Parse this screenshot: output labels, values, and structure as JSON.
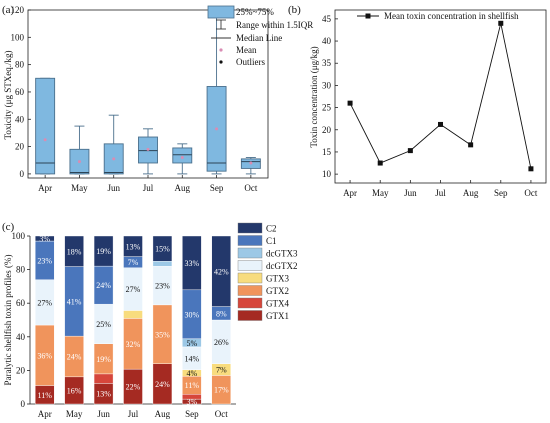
{
  "panels": {
    "a": {
      "label": "(a)",
      "chart_data": {
        "type": "box",
        "categories": [
          "Apr",
          "May",
          "Jun",
          "Jul",
          "Aug",
          "Sep",
          "Oct"
        ],
        "ylabel": "Toxicity (μg STXeq./kg)",
        "ylim": [
          -3,
          120
        ],
        "yticks": [
          0,
          20,
          40,
          60,
          80,
          100,
          120
        ],
        "boxes": [
          {
            "category": "Apr",
            "whisker_low": 0,
            "q1": 0,
            "median": 8,
            "q3": 70,
            "whisker_high": 70,
            "mean": 25
          },
          {
            "category": "May",
            "whisker_low": 0,
            "q1": 0,
            "median": 1,
            "q3": 18,
            "whisker_high": 35,
            "mean": 9
          },
          {
            "category": "Jun",
            "whisker_low": 0,
            "q1": 0,
            "median": 1,
            "q3": 22,
            "whisker_high": 43,
            "mean": 11
          },
          {
            "category": "Jul",
            "whisker_low": 0,
            "q1": 8,
            "median": 17,
            "q3": 27,
            "whisker_high": 33,
            "mean": 18
          },
          {
            "category": "Aug",
            "whisker_low": 0,
            "q1": 8,
            "median": 14,
            "q3": 19,
            "whisker_high": 22,
            "mean": 12
          },
          {
            "category": "Sep",
            "whisker_low": 0,
            "q1": 2,
            "median": 8,
            "q3": 64,
            "whisker_high": 115,
            "mean": 33
          },
          {
            "category": "Oct",
            "whisker_low": 0,
            "q1": 4,
            "median": 9,
            "q3": 11,
            "whisker_high": 12,
            "mean": 8
          }
        ],
        "legend": [
          "25%~75%",
          "Range within 1.5IQR",
          "Median Line",
          "Mean",
          "Outliers"
        ],
        "legend_position": "top-right",
        "colors": {
          "box_fill": "#7fb8e0",
          "box_stroke": "#4a6f8c",
          "mean": "#d98cb3"
        }
      }
    },
    "b": {
      "label": "(b)",
      "chart_data": {
        "type": "line",
        "categories": [
          "Apr",
          "May",
          "Jun",
          "Jul",
          "Aug",
          "Sep",
          "Oct"
        ],
        "series": [
          {
            "name": "Mean toxin concentration in shellfish",
            "values": [
              26,
              12.5,
              15.3,
              21.2,
              16.6,
              44,
              11.2
            ]
          }
        ],
        "ylabel": "Toxin concentration (μg/kg)",
        "ylim": [
          10,
          45
        ],
        "yticks": [
          10,
          15,
          20,
          25,
          30,
          35,
          40,
          45
        ],
        "legend_position": "top",
        "colors": {
          "line": "#111111"
        }
      }
    },
    "c": {
      "label": "(c)",
      "chart_data": {
        "type": "stacked-bar",
        "categories": [
          "Apr",
          "May",
          "Jun",
          "Jul",
          "Aug",
          "Sep",
          "Oct"
        ],
        "ylabel": "Paralytic shellfish toxin profiles (%)",
        "ylim": [
          0,
          100
        ],
        "yticks": [
          0,
          20,
          40,
          60,
          80,
          100
        ],
        "series": [
          {
            "name": "GTX1",
            "color": "#a52a22",
            "values": [
              11,
              16,
              13,
              22,
              24,
              3,
              0
            ],
            "labels": [
              "11%",
              "16%",
              "13%",
              "22%",
              "24%",
              "3%",
              ""
            ]
          },
          {
            "name": "GTX4",
            "color": "#d6463b",
            "values": [
              0,
              0,
              6,
              0,
              0,
              3,
              0
            ],
            "labels": [
              "",
              "",
              "",
              "",
              "",
              "",
              ""
            ]
          },
          {
            "name": "GTX2",
            "color": "#f0945c",
            "values": [
              36,
              24,
              19,
              32,
              35,
              11,
              17
            ],
            "labels": [
              "36%",
              "24%",
              "19%",
              "32%",
              "35%",
              "11%",
              "17%"
            ]
          },
          {
            "name": "GTX3",
            "color": "#f8dc7e",
            "values": [
              0,
              0,
              0,
              5,
              0,
              4,
              7
            ],
            "labels": [
              "",
              "",
              "",
              "",
              "",
              "4%",
              "7%"
            ]
          },
          {
            "name": "dcGTX2",
            "color": "#e9f3fb",
            "values": [
              27,
              0,
              25,
              27,
              23,
              14,
              26
            ],
            "labels": [
              "27%",
              "",
              "25%",
              "27%",
              "23%",
              "14%",
              "26%"
            ]
          },
          {
            "name": "dcGTX3",
            "color": "#9cc8e6",
            "values": [
              0,
              0,
              0,
              0,
              3,
              5,
              0
            ],
            "labels": [
              "",
              "",
              "",
              "",
              "",
              "5%",
              ""
            ]
          },
          {
            "name": "C1",
            "color": "#4a76bc",
            "values": [
              23,
              41,
              24,
              7,
              0,
              30,
              8
            ],
            "labels": [
              "23%",
              "41%",
              "24%",
              "7%",
              "",
              "30%",
              "8%"
            ]
          },
          {
            "name": "C2",
            "color": "#23386b",
            "values": [
              3,
              18,
              19,
              13,
              15,
              33,
              42
            ],
            "labels": [
              "3%",
              "18%",
              "19%",
              "13%",
              "15%",
              "33%",
              "42%"
            ]
          }
        ],
        "legend_order": [
          "C2",
          "C1",
          "dcGTX3",
          "dcGTX2",
          "GTX3",
          "GTX2",
          "GTX4",
          "GTX1"
        ],
        "legend_position": "right"
      }
    }
  }
}
